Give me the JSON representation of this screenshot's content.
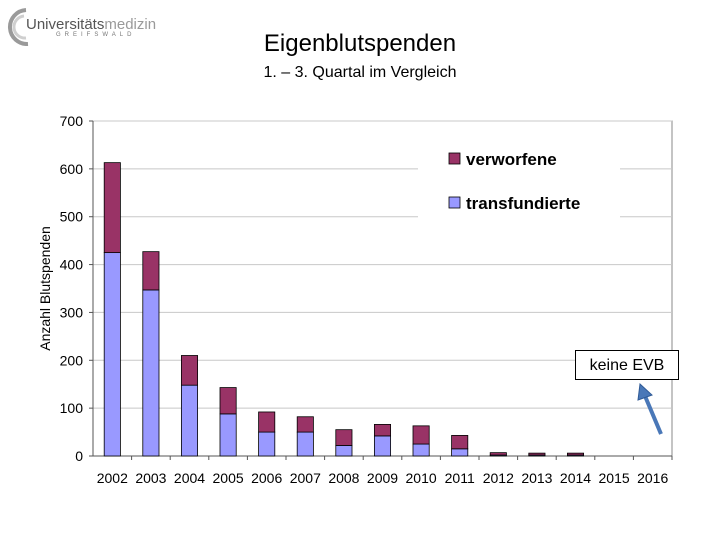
{
  "logo": {
    "name_part1": "Universitäts",
    "name_part2": "medizin",
    "city": "GREIFSWALD"
  },
  "chart_data": {
    "type": "bar",
    "stacked": true,
    "title": "Eigenblutspenden",
    "subtitle": "1. – 3. Quartal im Vergleich",
    "xlabel": "",
    "ylabel": "Anzahl Blutspenden",
    "ylim": [
      0,
      700
    ],
    "yticks": [
      0,
      100,
      200,
      300,
      400,
      500,
      600,
      700
    ],
    "grid": true,
    "legend_position": "top-right",
    "categories": [
      "2002",
      "2003",
      "2004",
      "2005",
      "2006",
      "2007",
      "2008",
      "2009",
      "2010",
      "2011",
      "2012",
      "2013",
      "2014",
      "2015",
      "2016"
    ],
    "series": [
      {
        "name": "transfundierte",
        "color": "#9999ff",
        "values": [
          425,
          347,
          148,
          88,
          50,
          50,
          22,
          42,
          25,
          15,
          2,
          2,
          2,
          0,
          0
        ]
      },
      {
        "name": "verworfene",
        "color": "#993366",
        "values": [
          188,
          80,
          62,
          55,
          42,
          32,
          33,
          24,
          38,
          28,
          5,
          4,
          4,
          0,
          0
        ]
      }
    ],
    "legend_order": [
      "verworfene",
      "transfundierte"
    ],
    "annotation": "keine EVB"
  }
}
